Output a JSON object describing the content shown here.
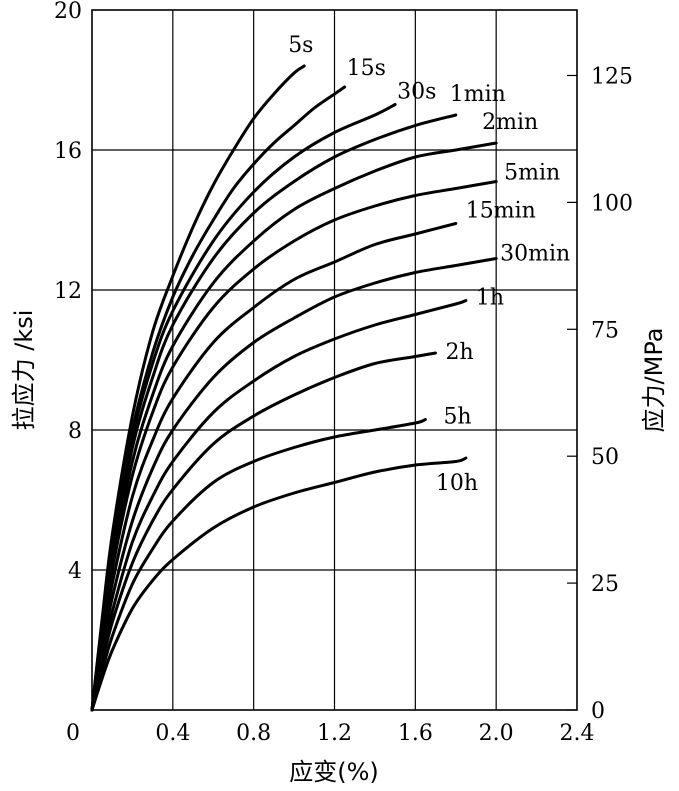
{
  "chart_data": {
    "type": "line",
    "xlabel": "应变(%)",
    "ylabel": "拉应力 /ksi",
    "y2label": "应力/MPa",
    "xlim": [
      0,
      2.4
    ],
    "ylim": [
      0,
      20
    ],
    "y2lim": [
      0,
      137.9
    ],
    "x_ticks": [
      "0",
      "0.4",
      "0.8",
      "1.2",
      "1.6",
      "2.0",
      "2.4"
    ],
    "y_ticks": [
      "4",
      "8",
      "12",
      "16",
      "20"
    ],
    "y2_ticks": [
      "0",
      "25",
      "50",
      "75",
      "100",
      "125"
    ],
    "grid": true,
    "series": [
      {
        "name": "5s",
        "x": [
          0,
          0.05,
          0.1,
          0.2,
          0.3,
          0.4,
          0.5,
          0.6,
          0.7,
          0.8,
          0.9,
          1.0,
          1.05
        ],
        "y": [
          0,
          2.6,
          5.0,
          8.4,
          10.8,
          12.4,
          13.8,
          15.0,
          16.0,
          16.9,
          17.6,
          18.2,
          18.4
        ]
      },
      {
        "name": "15s",
        "x": [
          0,
          0.05,
          0.1,
          0.2,
          0.3,
          0.4,
          0.5,
          0.6,
          0.7,
          0.8,
          0.9,
          1.0,
          1.1,
          1.2,
          1.25
        ],
        "y": [
          0,
          2.5,
          4.8,
          8.0,
          10.2,
          11.8,
          13.0,
          14.0,
          14.9,
          15.6,
          16.2,
          16.7,
          17.2,
          17.6,
          17.8
        ]
      },
      {
        "name": "30s",
        "x": [
          0,
          0.05,
          0.1,
          0.2,
          0.3,
          0.4,
          0.6,
          0.8,
          1.0,
          1.2,
          1.4,
          1.5
        ],
        "y": [
          0,
          2.4,
          4.6,
          7.8,
          9.9,
          11.4,
          13.4,
          14.8,
          15.8,
          16.5,
          17.0,
          17.3
        ]
      },
      {
        "name": "1min",
        "x": [
          0,
          0.05,
          0.1,
          0.2,
          0.3,
          0.4,
          0.6,
          0.8,
          1.0,
          1.2,
          1.4,
          1.6,
          1.8
        ],
        "y": [
          0,
          2.3,
          4.4,
          7.5,
          9.5,
          11.0,
          12.9,
          14.2,
          15.1,
          15.8,
          16.3,
          16.7,
          17.0
        ]
      },
      {
        "name": "2min",
        "x": [
          0,
          0.05,
          0.1,
          0.2,
          0.3,
          0.4,
          0.6,
          0.8,
          1.0,
          1.2,
          1.4,
          1.6,
          1.8,
          2.0
        ],
        "y": [
          0,
          2.2,
          4.2,
          7.1,
          9.0,
          10.4,
          12.2,
          13.4,
          14.3,
          14.9,
          15.4,
          15.8,
          16.0,
          16.2
        ]
      },
      {
        "name": "5min",
        "x": [
          0,
          0.05,
          0.1,
          0.2,
          0.3,
          0.4,
          0.6,
          0.8,
          1.0,
          1.2,
          1.4,
          1.6,
          1.8,
          2.0
        ],
        "y": [
          0,
          2.1,
          4.0,
          6.7,
          8.5,
          9.8,
          11.5,
          12.6,
          13.4,
          14.0,
          14.4,
          14.7,
          14.9,
          15.1
        ]
      },
      {
        "name": "15min",
        "x": [
          0,
          0.05,
          0.1,
          0.2,
          0.3,
          0.4,
          0.6,
          0.8,
          1.0,
          1.2,
          1.4,
          1.6,
          1.8
        ],
        "y": [
          0,
          1.9,
          3.6,
          6.1,
          7.7,
          8.9,
          10.5,
          11.5,
          12.3,
          12.8,
          13.3,
          13.6,
          13.9
        ]
      },
      {
        "name": "30min",
        "x": [
          0,
          0.05,
          0.1,
          0.2,
          0.3,
          0.4,
          0.6,
          0.8,
          1.0,
          1.2,
          1.4,
          1.6,
          1.8,
          2.0
        ],
        "y": [
          0,
          1.7,
          3.2,
          5.4,
          6.9,
          8.0,
          9.5,
          10.5,
          11.2,
          11.8,
          12.2,
          12.5,
          12.7,
          12.9
        ]
      },
      {
        "name": "1h",
        "x": [
          0,
          0.05,
          0.1,
          0.2,
          0.3,
          0.4,
          0.6,
          0.8,
          1.0,
          1.2,
          1.4,
          1.6,
          1.8,
          1.85
        ],
        "y": [
          0,
          1.5,
          2.8,
          4.8,
          6.1,
          7.1,
          8.5,
          9.4,
          10.1,
          10.6,
          11.0,
          11.3,
          11.6,
          11.7
        ]
      },
      {
        "name": "2h",
        "x": [
          0,
          0.05,
          0.1,
          0.2,
          0.3,
          0.4,
          0.6,
          0.8,
          1.0,
          1.2,
          1.4,
          1.6,
          1.7
        ],
        "y": [
          0,
          1.3,
          2.5,
          4.2,
          5.4,
          6.3,
          7.6,
          8.4,
          9.0,
          9.5,
          9.9,
          10.1,
          10.2
        ]
      },
      {
        "name": "5h",
        "x": [
          0,
          0.05,
          0.1,
          0.2,
          0.3,
          0.4,
          0.6,
          0.8,
          1.0,
          1.2,
          1.4,
          1.6,
          1.65
        ],
        "y": [
          0,
          1.1,
          2.1,
          3.6,
          4.6,
          5.4,
          6.5,
          7.1,
          7.5,
          7.8,
          8.0,
          8.2,
          8.3
        ]
      },
      {
        "name": "10h",
        "x": [
          0,
          0.05,
          0.1,
          0.2,
          0.3,
          0.4,
          0.6,
          0.8,
          1.0,
          1.2,
          1.4,
          1.6,
          1.8,
          1.85
        ],
        "y": [
          0,
          0.9,
          1.7,
          2.9,
          3.7,
          4.3,
          5.2,
          5.8,
          6.2,
          6.5,
          6.8,
          7.0,
          7.1,
          7.2
        ]
      }
    ]
  }
}
